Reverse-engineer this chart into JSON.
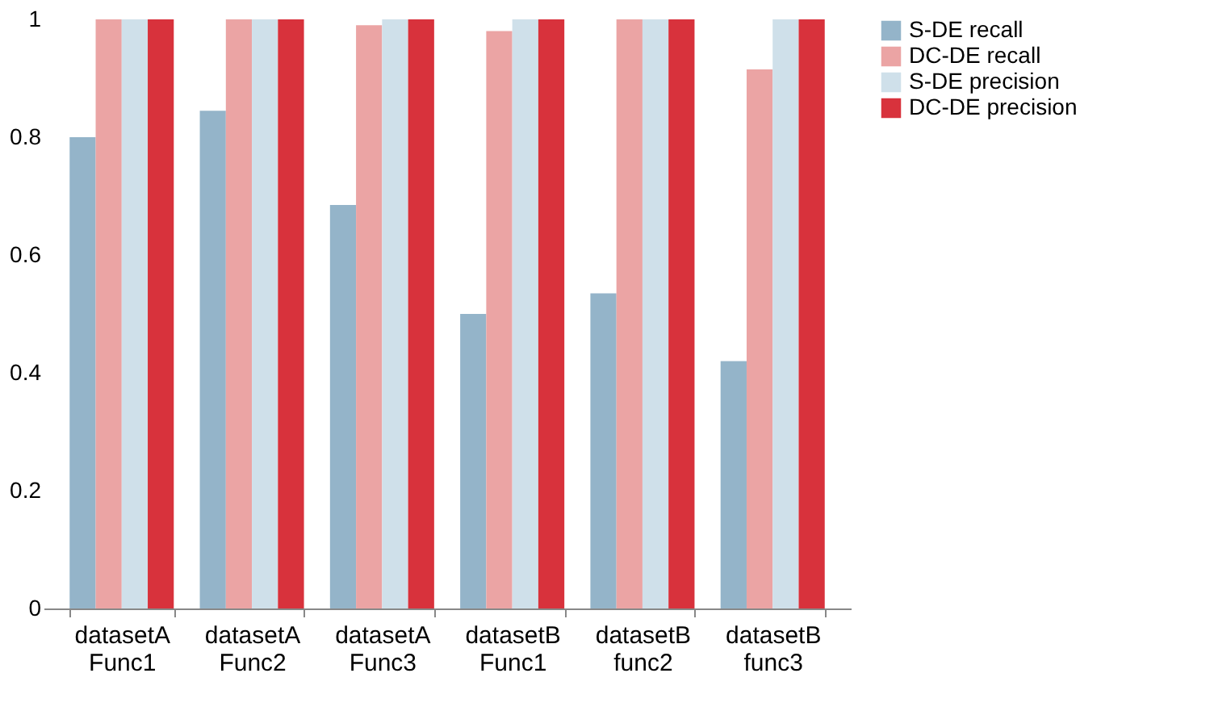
{
  "chart_data": {
    "type": "bar",
    "categories": [
      "datasetA Func1",
      "datasetA Func2",
      "datasetA Func3",
      "datasetB Func1",
      "datasetB func2",
      "datasetB func3"
    ],
    "series": [
      {
        "name": "S-DE recall",
        "color": "#94b4c9",
        "values": [
          0.8,
          0.845,
          0.685,
          0.5,
          0.535,
          0.42
        ]
      },
      {
        "name": "DC-DE recall",
        "color": "#eba4a4",
        "values": [
          1.0,
          1.0,
          0.99,
          0.98,
          1.0,
          0.915
        ]
      },
      {
        "name": "S-DE precision",
        "color": "#cfe0ea",
        "values": [
          1.0,
          1.0,
          1.0,
          1.0,
          1.0,
          1.0
        ]
      },
      {
        "name": "DC-DE precision",
        "color": "#d8323c",
        "values": [
          1.0,
          1.0,
          1.0,
          1.0,
          1.0,
          1.0
        ]
      }
    ],
    "ylim": [
      0,
      1
    ],
    "yticks": [
      0,
      0.2,
      0.4,
      0.6,
      0.8,
      1
    ],
    "grid": false,
    "legend": "right"
  }
}
